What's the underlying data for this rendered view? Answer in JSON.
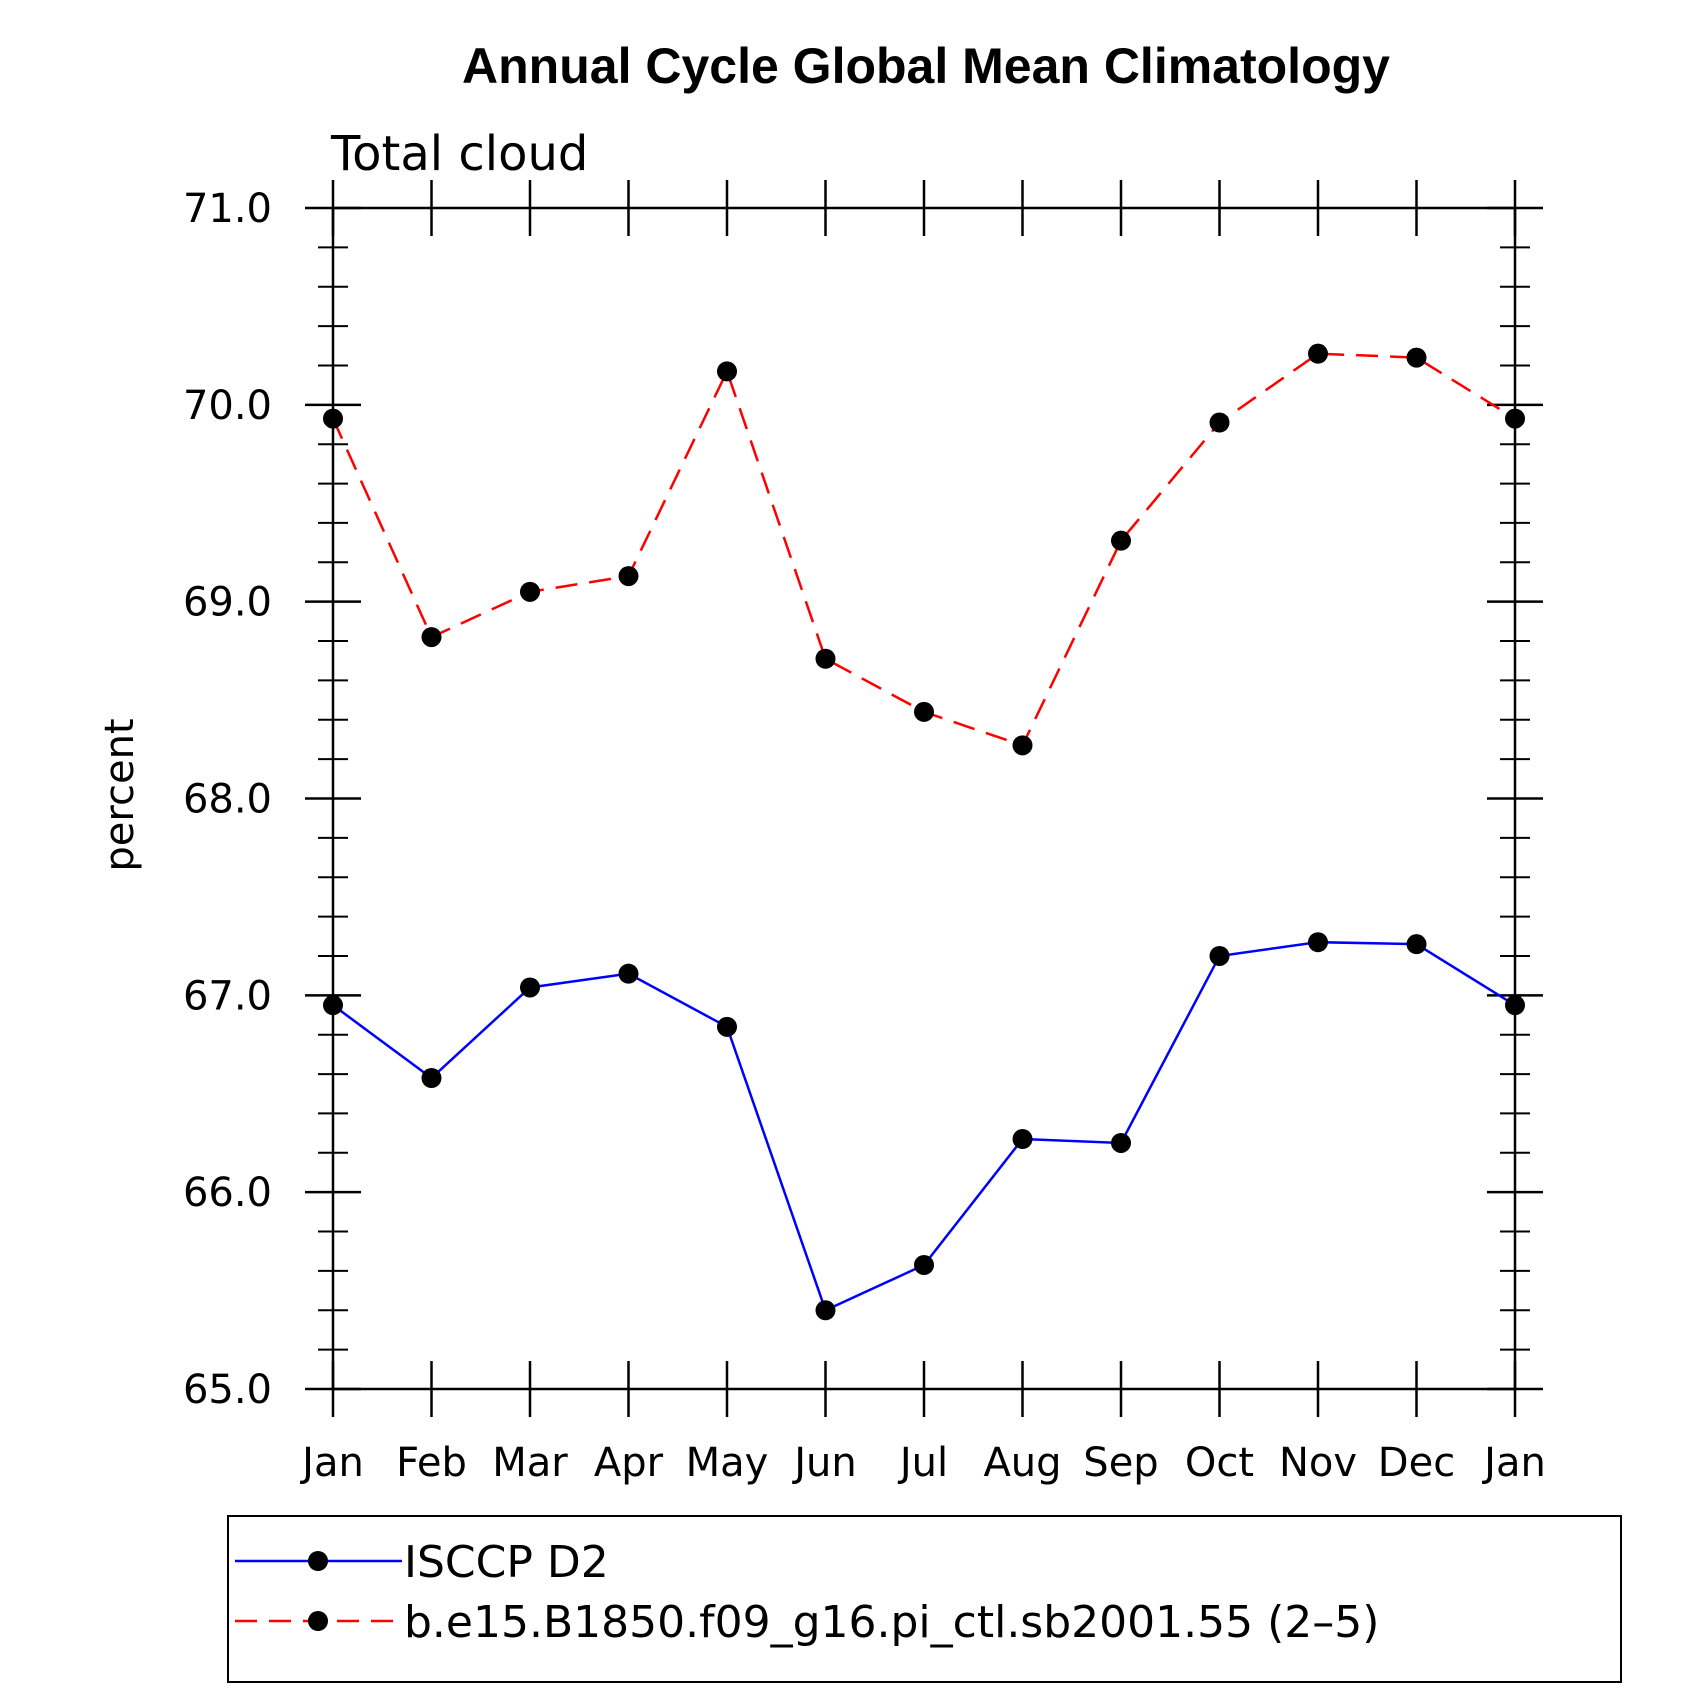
{
  "chart_data": {
    "type": "line",
    "title": "Annual Cycle Global Mean Climatology",
    "subtitle": "Total cloud",
    "xlabel": "",
    "ylabel": "percent",
    "categories": [
      "Jan",
      "Feb",
      "Mar",
      "Apr",
      "May",
      "Jun",
      "Jul",
      "Aug",
      "Sep",
      "Oct",
      "Nov",
      "Dec",
      "Jan"
    ],
    "ylim": [
      65.0,
      71.0
    ],
    "yticks": [
      "65.0",
      "66.0",
      "67.0",
      "68.0",
      "69.0",
      "70.0",
      "71.0"
    ],
    "grid": false,
    "legend_position": "bottom",
    "series": [
      {
        "name": "ISCCP D2",
        "color": "#0000ff",
        "dash": "solid",
        "marker": "filled-circle",
        "values": [
          66.95,
          66.58,
          67.04,
          67.11,
          66.84,
          65.4,
          65.63,
          66.27,
          66.25,
          67.2,
          67.27,
          67.26,
          66.95
        ]
      },
      {
        "name": "b.e15.B1850.f09_g16.pi_ctl.sb2001.55 (2–5)",
        "color": "#ff0000",
        "dash": "dashed",
        "marker": "filled-circle",
        "values": [
          69.93,
          68.82,
          69.05,
          69.13,
          70.17,
          68.71,
          68.44,
          68.27,
          69.31,
          69.91,
          70.26,
          70.24,
          69.93
        ]
      }
    ]
  }
}
